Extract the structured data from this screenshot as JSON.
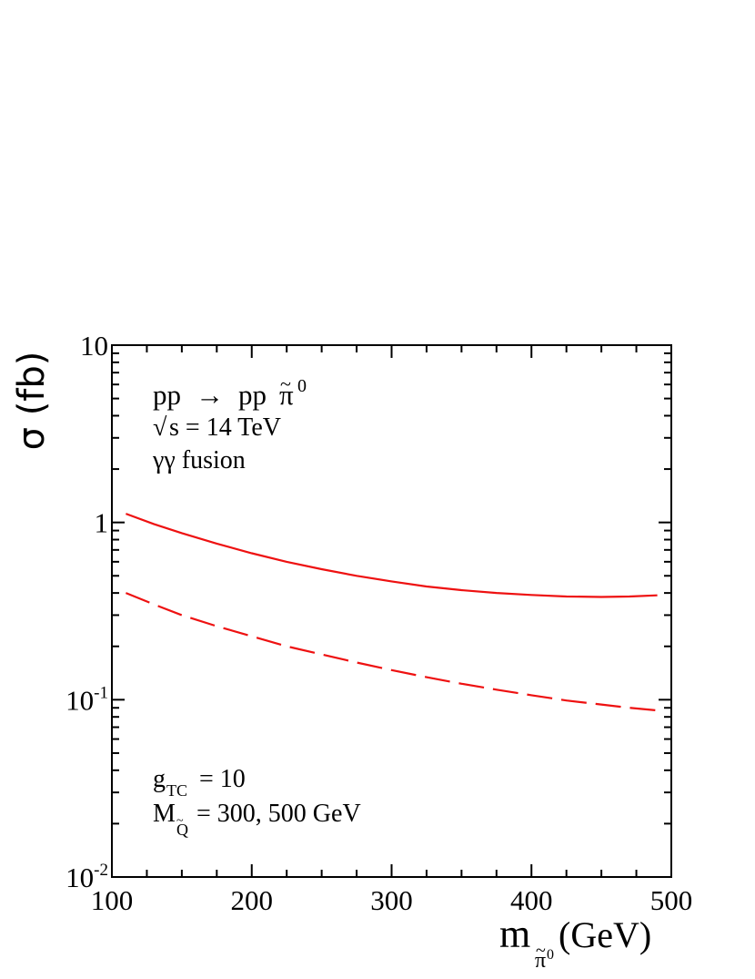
{
  "chart_data": {
    "type": "line",
    "title": "",
    "xlabel": {
      "base": "m",
      "sub": "π",
      "sub_sup": "0",
      "unit": "(GeV)"
    },
    "ylabel": "σ (fb)",
    "xlim": [
      100,
      500
    ],
    "ylim": [
      0.01,
      10
    ],
    "yscale": "log",
    "grid": false,
    "x_ticks": [
      100,
      200,
      300,
      400,
      500
    ],
    "x_tick_labels": [
      "100",
      "200",
      "300",
      "400",
      "500"
    ],
    "y_ticks": [
      0.01,
      0.1,
      1,
      10
    ],
    "y_tick_labels": [
      {
        "base": "10",
        "sup": "-2"
      },
      {
        "base": "10",
        "sup": "-1"
      },
      {
        "base": "1",
        "sup": ""
      },
      {
        "base": "10",
        "sup": ""
      }
    ],
    "series": [
      {
        "style": "solid",
        "color": "#ee1111",
        "x": [
          110,
          130,
          150,
          175,
          200,
          225,
          250,
          275,
          300,
          325,
          350,
          375,
          400,
          425,
          450,
          470,
          490
        ],
        "y": [
          1.12,
          0.98,
          0.87,
          0.76,
          0.67,
          0.6,
          0.545,
          0.5,
          0.465,
          0.435,
          0.415,
          0.4,
          0.39,
          0.382,
          0.38,
          0.382,
          0.388
        ]
      },
      {
        "style": "dashed",
        "color": "#ee1111",
        "x": [
          110,
          130,
          150,
          175,
          200,
          225,
          250,
          275,
          300,
          325,
          350,
          375,
          400,
          425,
          450,
          470,
          490
        ],
        "y": [
          0.4,
          0.345,
          0.3,
          0.26,
          0.228,
          0.2,
          0.18,
          0.162,
          0.147,
          0.134,
          0.123,
          0.114,
          0.106,
          0.099,
          0.094,
          0.09,
          0.087
        ]
      }
    ],
    "annotations": {
      "process": {
        "lhs": "pp",
        "arrow": "→",
        "rhs": "pp",
        "particle": "π",
        "sup": "0"
      },
      "energy": {
        "root": "√",
        "text": "s = 14 TeV"
      },
      "mode": "γγ fusion",
      "coupling": {
        "base": "g",
        "sub": "TC",
        "text": "= 10"
      },
      "mass": {
        "base": "M",
        "sub": "Q",
        "text": "= 300, 500 GeV"
      }
    }
  }
}
